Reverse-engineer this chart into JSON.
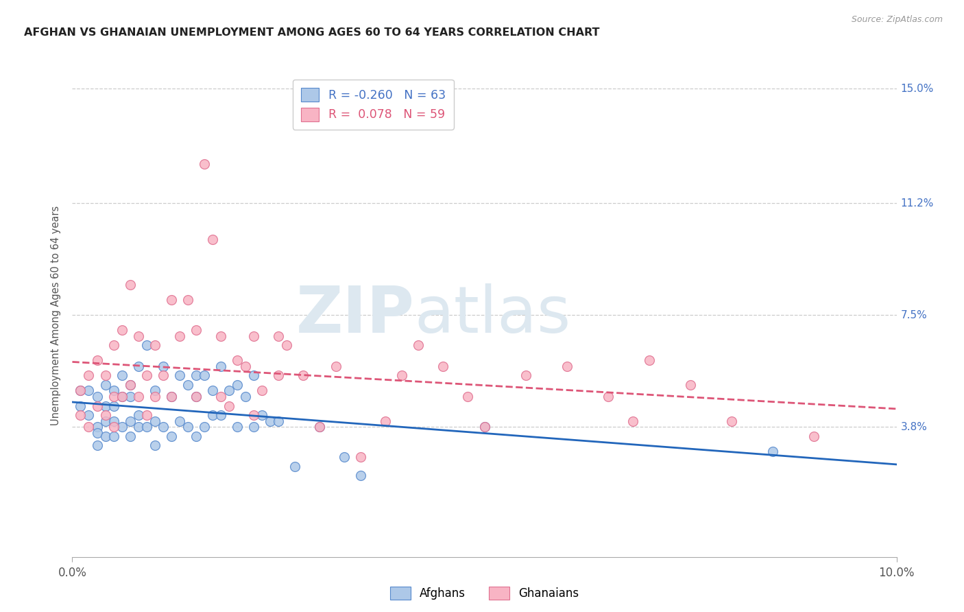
{
  "title": "AFGHAN VS GHANAIAN UNEMPLOYMENT AMONG AGES 60 TO 64 YEARS CORRELATION CHART",
  "source": "Source: ZipAtlas.com",
  "ylabel": "Unemployment Among Ages 60 to 64 years",
  "xlim": [
    0.0,
    0.1
  ],
  "ylim": [
    -0.005,
    0.155
  ],
  "xtick_vals": [
    0.0,
    0.1
  ],
  "xticklabels": [
    "0.0%",
    "10.0%"
  ],
  "ytick_right_labels": [
    "3.8%",
    "7.5%",
    "11.2%",
    "15.0%"
  ],
  "ytick_right_values": [
    0.038,
    0.075,
    0.112,
    0.15
  ],
  "blue_scatter_color": "#adc8e8",
  "blue_edge_color": "#5588cc",
  "pink_scatter_color": "#f8b4c4",
  "pink_edge_color": "#e07090",
  "blue_line_color": "#2266bb",
  "pink_line_color": "#dd5577",
  "R_afghan": -0.26,
  "N_afghan": 63,
  "R_ghanaian": 0.078,
  "N_ghanaian": 59,
  "watermark_zip": "ZIP",
  "watermark_atlas": "atlas",
  "legend_label_afghan": "Afghans",
  "legend_label_ghanaian": "Ghanaians",
  "afghan_x": [
    0.001,
    0.001,
    0.002,
    0.002,
    0.003,
    0.003,
    0.003,
    0.003,
    0.004,
    0.004,
    0.004,
    0.004,
    0.005,
    0.005,
    0.005,
    0.005,
    0.006,
    0.006,
    0.006,
    0.007,
    0.007,
    0.007,
    0.007,
    0.008,
    0.008,
    0.008,
    0.009,
    0.009,
    0.01,
    0.01,
    0.01,
    0.011,
    0.011,
    0.012,
    0.012,
    0.013,
    0.013,
    0.014,
    0.014,
    0.015,
    0.015,
    0.015,
    0.016,
    0.016,
    0.017,
    0.017,
    0.018,
    0.018,
    0.019,
    0.02,
    0.02,
    0.021,
    0.022,
    0.022,
    0.023,
    0.024,
    0.025,
    0.027,
    0.03,
    0.033,
    0.035,
    0.05,
    0.085
  ],
  "afghan_y": [
    0.05,
    0.045,
    0.05,
    0.042,
    0.048,
    0.038,
    0.036,
    0.032,
    0.052,
    0.045,
    0.04,
    0.035,
    0.05,
    0.045,
    0.04,
    0.035,
    0.055,
    0.048,
    0.038,
    0.052,
    0.048,
    0.04,
    0.035,
    0.058,
    0.042,
    0.038,
    0.065,
    0.038,
    0.05,
    0.04,
    0.032,
    0.058,
    0.038,
    0.048,
    0.035,
    0.055,
    0.04,
    0.052,
    0.038,
    0.055,
    0.048,
    0.035,
    0.055,
    0.038,
    0.05,
    0.042,
    0.058,
    0.042,
    0.05,
    0.052,
    0.038,
    0.048,
    0.055,
    0.038,
    0.042,
    0.04,
    0.04,
    0.025,
    0.038,
    0.028,
    0.022,
    0.038,
    0.03
  ],
  "ghanaian_x": [
    0.001,
    0.001,
    0.002,
    0.002,
    0.003,
    0.003,
    0.004,
    0.004,
    0.005,
    0.005,
    0.005,
    0.006,
    0.006,
    0.007,
    0.007,
    0.008,
    0.008,
    0.009,
    0.009,
    0.01,
    0.01,
    0.011,
    0.012,
    0.012,
    0.013,
    0.014,
    0.015,
    0.015,
    0.016,
    0.017,
    0.018,
    0.018,
    0.019,
    0.02,
    0.021,
    0.022,
    0.022,
    0.023,
    0.025,
    0.025,
    0.026,
    0.028,
    0.03,
    0.032,
    0.035,
    0.038,
    0.04,
    0.042,
    0.045,
    0.048,
    0.05,
    0.055,
    0.06,
    0.065,
    0.068,
    0.07,
    0.075,
    0.08,
    0.09
  ],
  "ghanaian_y": [
    0.05,
    0.042,
    0.055,
    0.038,
    0.06,
    0.045,
    0.055,
    0.042,
    0.065,
    0.048,
    0.038,
    0.07,
    0.048,
    0.085,
    0.052,
    0.068,
    0.048,
    0.055,
    0.042,
    0.065,
    0.048,
    0.055,
    0.08,
    0.048,
    0.068,
    0.08,
    0.07,
    0.048,
    0.125,
    0.1,
    0.068,
    0.048,
    0.045,
    0.06,
    0.058,
    0.042,
    0.068,
    0.05,
    0.055,
    0.068,
    0.065,
    0.055,
    0.038,
    0.058,
    0.028,
    0.04,
    0.055,
    0.065,
    0.058,
    0.048,
    0.038,
    0.055,
    0.058,
    0.048,
    0.04,
    0.06,
    0.052,
    0.04,
    0.035
  ]
}
